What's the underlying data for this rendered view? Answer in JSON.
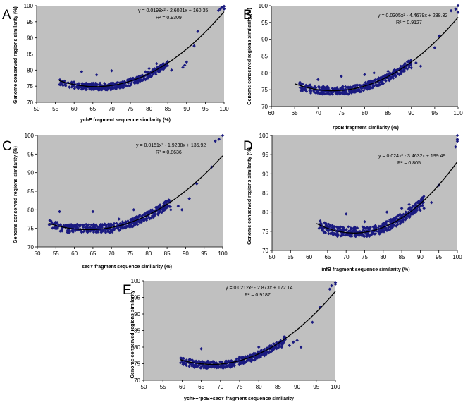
{
  "figure": {
    "y_axis_label": "Genome conserved regions similarity (%)",
    "y_axis_label_short": "Genome conserved regions similarity"
  },
  "chart_data": [
    {
      "panel": "A",
      "type": "scatter",
      "xlabel": "ychF fragment sequence similarity (%)",
      "ylabel": "Genome conserved regions similarity (%)",
      "xlim": [
        50,
        100
      ],
      "ylim": [
        70,
        100
      ],
      "xticks": [
        50,
        55,
        60,
        65,
        70,
        75,
        80,
        85,
        90,
        95,
        100
      ],
      "yticks": [
        70,
        75,
        80,
        85,
        90,
        95,
        100
      ],
      "trendline": {
        "a": 0.0198,
        "b": -2.6021,
        "c": 160.35,
        "x_range": [
          56,
          100
        ]
      },
      "equation": "y = 0.0198x² - 2.6021x + 160.35",
      "r2": "R² = 0.9309",
      "cluster": {
        "x_range": [
          56,
          85
        ],
        "y_base": 73.8,
        "y_spread": 2.2,
        "count": 430
      },
      "points": [
        [
          89,
          80.8
        ],
        [
          89.5,
          81.5
        ],
        [
          90,
          82.5
        ],
        [
          92,
          87.5
        ],
        [
          93,
          92
        ],
        [
          98.5,
          98.5
        ],
        [
          99,
          99
        ],
        [
          99.5,
          99.5
        ],
        [
          100,
          99.8
        ],
        [
          100,
          99
        ],
        [
          82,
          82
        ],
        [
          84,
          80.5
        ],
        [
          86,
          80
        ],
        [
          79,
          79.5
        ],
        [
          81,
          80
        ],
        [
          62,
          79.5
        ],
        [
          66,
          78.5
        ],
        [
          70,
          79.8
        ],
        [
          80,
          80.5
        ]
      ]
    },
    {
      "panel": "B",
      "type": "scatter",
      "xlabel": "rpoB fragment similarity (%)",
      "ylabel": "Genome conserved regions similarity (%)",
      "xlim": [
        60,
        100
      ],
      "ylim": [
        70,
        100
      ],
      "xticks": [
        60,
        65,
        70,
        75,
        80,
        85,
        90,
        95,
        100
      ],
      "yticks": [
        70,
        75,
        80,
        85,
        90,
        95,
        100
      ],
      "trendline": {
        "a": 0.0305,
        "b": -4.4679,
        "c": 238.32,
        "x_range": [
          65,
          100
        ]
      },
      "equation": "y = 0.0305x² - 4.4679x + 238.32",
      "r2": "R² = 0.9127",
      "cluster": {
        "x_range": [
          66,
          90
        ],
        "y_base": 73.6,
        "y_spread": 2.4,
        "count": 430
      },
      "points": [
        [
          90,
          81.5
        ],
        [
          91,
          83
        ],
        [
          92,
          82
        ],
        [
          95,
          87.5
        ],
        [
          96,
          91
        ],
        [
          98.5,
          98.5
        ],
        [
          99.5,
          99
        ],
        [
          100,
          100
        ],
        [
          100,
          98
        ],
        [
          80,
          79.5
        ],
        [
          85,
          80.5
        ],
        [
          75,
          79
        ],
        [
          88,
          80.5
        ],
        [
          70,
          78
        ],
        [
          82,
          80
        ]
      ]
    },
    {
      "panel": "C",
      "type": "scatter",
      "xlabel": "secY fragment sequence similarity (%)",
      "ylabel": "Genome conserved regions similarity (%)",
      "xlim": [
        50,
        100
      ],
      "ylim": [
        70,
        100
      ],
      "xticks": [
        50,
        55,
        60,
        65,
        70,
        75,
        80,
        85,
        90,
        95,
        100
      ],
      "yticks": [
        70,
        75,
        80,
        85,
        90,
        95,
        100
      ],
      "trendline": {
        "a": 0.0151,
        "b": -1.9238,
        "c": 135.92,
        "x_range": [
          53,
          100
        ]
      },
      "equation": "y = 0.0151x² - 1.9238x + 135.92",
      "r2": "R² = 0.8636",
      "cluster": {
        "x_range": [
          53,
          86
        ],
        "y_base": 73.8,
        "y_spread": 2.4,
        "count": 460
      },
      "points": [
        [
          88,
          81
        ],
        [
          89,
          80
        ],
        [
          91,
          83
        ],
        [
          93,
          87
        ],
        [
          97,
          91.5
        ],
        [
          98,
          98.5
        ],
        [
          99,
          99
        ],
        [
          100,
          100
        ],
        [
          56,
          79.5
        ],
        [
          65,
          79.5
        ],
        [
          76,
          80
        ],
        [
          83,
          80
        ],
        [
          86,
          80
        ],
        [
          72,
          77.5
        ]
      ]
    },
    {
      "panel": "D",
      "type": "scatter",
      "xlabel": "infB fragment sequence similarity (%)",
      "ylabel": "Genome conserved regions similarity (%)",
      "xlim": [
        50,
        100
      ],
      "ylim": [
        70,
        100
      ],
      "xticks": [
        50,
        55,
        60,
        65,
        70,
        75,
        80,
        85,
        90,
        95,
        100
      ],
      "yticks": [
        70,
        75,
        80,
        85,
        90,
        95,
        100
      ],
      "trendline": {
        "a": 0.024,
        "b": -3.4632,
        "c": 199.49,
        "x_range": [
          62,
          100
        ]
      },
      "equation": "y = 0.024x² - 3.4632x + 199.49",
      "r2": "R² = 0.805",
      "cluster": {
        "x_range": [
          62,
          91
        ],
        "y_base": 73.6,
        "y_spread": 2.6,
        "count": 460
      },
      "points": [
        [
          85,
          81
        ],
        [
          87,
          82
        ],
        [
          90,
          80.5
        ],
        [
          91,
          81
        ],
        [
          93,
          82.5
        ],
        [
          95,
          87
        ],
        [
          99.5,
          97
        ],
        [
          100,
          98.5
        ],
        [
          100,
          100
        ],
        [
          100,
          99
        ],
        [
          70,
          79.5
        ],
        [
          81,
          80
        ],
        [
          88,
          79.5
        ],
        [
          75,
          77.5
        ]
      ]
    },
    {
      "panel": "E",
      "type": "scatter",
      "xlabel": "ychF+rpoB+secY fragment sequence similarity",
      "ylabel": "Genome conserved regions similarity",
      "xlim": [
        50,
        100
      ],
      "ylim": [
        70,
        100
      ],
      "xticks": [
        50,
        55,
        60,
        65,
        70,
        75,
        80,
        85,
        90,
        95,
        100
      ],
      "yticks": [
        70,
        75,
        80,
        85,
        90,
        95,
        100
      ],
      "trendline": {
        "a": 0.0212,
        "b": -2.873,
        "c": 172.14,
        "x_range": [
          59.5,
          100
        ]
      },
      "equation": "y = 0.0212x² - 2.873x + 172.14",
      "r2": "R² = 0.9187",
      "cluster": {
        "x_range": [
          59.5,
          87
        ],
        "y_base": 73.6,
        "y_spread": 2.2,
        "count": 420
      },
      "points": [
        [
          88,
          80.5
        ],
        [
          89,
          81.5
        ],
        [
          90,
          82
        ],
        [
          91,
          80
        ],
        [
          94,
          87.5
        ],
        [
          96,
          92
        ],
        [
          98.5,
          97.5
        ],
        [
          99,
          98.5
        ],
        [
          100,
          99.5
        ],
        [
          100,
          99
        ],
        [
          65,
          79.5
        ],
        [
          80,
          80
        ],
        [
          86,
          80
        ],
        [
          75,
          77
        ]
      ]
    }
  ]
}
